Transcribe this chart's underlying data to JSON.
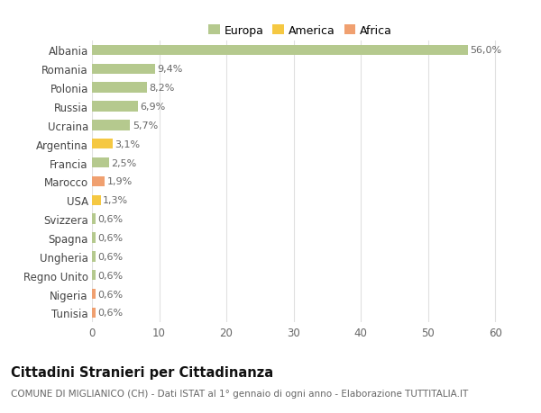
{
  "categories": [
    "Albania",
    "Romania",
    "Polonia",
    "Russia",
    "Ucraina",
    "Argentina",
    "Francia",
    "Marocco",
    "USA",
    "Svizzera",
    "Spagna",
    "Ungheria",
    "Regno Unito",
    "Nigeria",
    "Tunisia"
  ],
  "values": [
    56.0,
    9.4,
    8.2,
    6.9,
    5.7,
    3.1,
    2.5,
    1.9,
    1.3,
    0.6,
    0.6,
    0.6,
    0.6,
    0.6,
    0.6
  ],
  "colors": [
    "#b5c98e",
    "#b5c98e",
    "#b5c98e",
    "#b5c98e",
    "#b5c98e",
    "#f5c842",
    "#b5c98e",
    "#f0a070",
    "#f5c842",
    "#b5c98e",
    "#b5c98e",
    "#b5c98e",
    "#b5c98e",
    "#f0a070",
    "#f0a070"
  ],
  "labels": [
    "56,0%",
    "9,4%",
    "8,2%",
    "6,9%",
    "5,7%",
    "3,1%",
    "2,5%",
    "1,9%",
    "1,3%",
    "0,6%",
    "0,6%",
    "0,6%",
    "0,6%",
    "0,6%",
    "0,6%"
  ],
  "legend": [
    {
      "label": "Europa",
      "color": "#b5c98e"
    },
    {
      "label": "America",
      "color": "#f5c842"
    },
    {
      "label": "Africa",
      "color": "#f0a070"
    }
  ],
  "xlim": [
    0,
    62
  ],
  "xticks": [
    0,
    10,
    20,
    30,
    40,
    50,
    60
  ],
  "title": "Cittadini Stranieri per Cittadinanza",
  "subtitle": "COMUNE DI MIGLIANICO (CH) - Dati ISTAT al 1° gennaio di ogni anno - Elaborazione TUTTITALIA.IT",
  "background_color": "#ffffff",
  "grid_color": "#e0e0e0",
  "text_color": "#666666",
  "ytick_color": "#444444",
  "label_fontsize": 8.0,
  "ytick_fontsize": 8.5,
  "xtick_fontsize": 8.5,
  "title_fontsize": 10.5,
  "subtitle_fontsize": 7.5,
  "bar_height": 0.55
}
